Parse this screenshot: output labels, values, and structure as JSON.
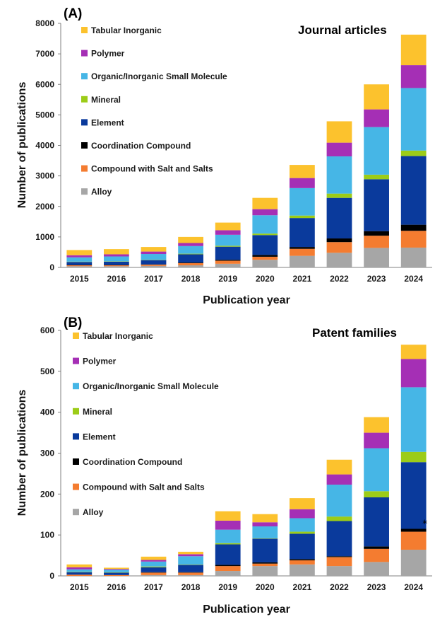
{
  "chart_data": [
    {
      "type": "bar",
      "stacked": true,
      "panel_label": "(A)",
      "title": "Journal articles",
      "xlabel": "Publication year",
      "ylabel": "Number of publications",
      "ylim": [
        0,
        8000
      ],
      "yticks": [
        0,
        1000,
        2000,
        3000,
        4000,
        5000,
        6000,
        7000,
        8000
      ],
      "categories": [
        "2015",
        "2016",
        "2017",
        "2018",
        "2019",
        "2020",
        "2021",
        "2022",
        "2023",
        "2024"
      ],
      "legend_position": "top-left",
      "legend_order": [
        "Tabular Inorganic",
        "Polymer",
        "Organic/Inorganic Small Molecule",
        "Mineral",
        "Element",
        "Coordination Compound",
        "Compound with Salt and Salts",
        "Alloy"
      ],
      "series": [
        {
          "name": "Alloy",
          "color": "#a6a6a6",
          "values": [
            40,
            40,
            50,
            70,
            120,
            250,
            380,
            480,
            640,
            650
          ]
        },
        {
          "name": "Compound with Salt and Salts",
          "color": "#f47c30",
          "values": [
            30,
            30,
            40,
            70,
            100,
            100,
            230,
            350,
            400,
            550
          ]
        },
        {
          "name": "Coordination Compound",
          "color": "#000000",
          "values": [
            10,
            10,
            10,
            20,
            30,
            60,
            60,
            120,
            150,
            200
          ]
        },
        {
          "name": "Element",
          "color": "#0a3a9c",
          "values": [
            100,
            110,
            140,
            270,
            430,
            650,
            950,
            1330,
            1700,
            2250
          ]
        },
        {
          "name": "Mineral",
          "color": "#9ccc18",
          "values": [
            10,
            10,
            10,
            20,
            30,
            50,
            80,
            140,
            150,
            180
          ]
        },
        {
          "name": "Organic/Inorganic Small Molecule",
          "color": "#46b6e6",
          "values": [
            140,
            160,
            190,
            250,
            360,
            600,
            900,
            1220,
            1560,
            2050
          ]
        },
        {
          "name": "Polymer",
          "color": "#a52fb5",
          "values": [
            70,
            70,
            80,
            100,
            150,
            200,
            330,
            450,
            580,
            750
          ]
        },
        {
          "name": "Tabular Inorganic",
          "color": "#fcc22d",
          "values": [
            170,
            170,
            150,
            200,
            250,
            370,
            430,
            700,
            820,
            1000
          ]
        }
      ]
    },
    {
      "type": "bar",
      "stacked": true,
      "panel_label": "(B)",
      "title": "Patent families",
      "xlabel": "Publication year",
      "ylabel": "Number of publications",
      "ylim": [
        0,
        600
      ],
      "yticks": [
        0,
        100,
        200,
        300,
        400,
        500,
        600
      ],
      "categories": [
        "2015",
        "2016",
        "2017",
        "2018",
        "2019",
        "2020",
        "2021",
        "2022",
        "2023",
        "2024"
      ],
      "legend_position": "top-left",
      "legend_order": [
        "Tabular Inorganic",
        "Polymer",
        "Organic/Inorganic Small Molecule",
        "Mineral",
        "Element",
        "Coordination Compound",
        "Compound with Salt and Salts",
        "Alloy"
      ],
      "annotation": {
        "text": "*",
        "category": "2024",
        "y": 130
      },
      "series": [
        {
          "name": "Alloy",
          "color": "#a6a6a6",
          "values": [
            0,
            0,
            2,
            2,
            12,
            24,
            28,
            24,
            34,
            64
          ]
        },
        {
          "name": "Compound with Salt and Salts",
          "color": "#f47c30",
          "values": [
            3,
            2,
            6,
            6,
            12,
            6,
            10,
            22,
            32,
            44
          ]
        },
        {
          "name": "Coordination Compound",
          "color": "#000000",
          "values": [
            0,
            0,
            1,
            1,
            3,
            3,
            3,
            2,
            6,
            7
          ]
        },
        {
          "name": "Element",
          "color": "#0a3a9c",
          "values": [
            6,
            6,
            12,
            18,
            50,
            58,
            62,
            86,
            120,
            163
          ]
        },
        {
          "name": "Mineral",
          "color": "#9ccc18",
          "values": [
            1,
            1,
            2,
            1,
            3,
            1,
            5,
            11,
            15,
            25
          ]
        },
        {
          "name": "Organic/Inorganic Small Molecule",
          "color": "#46b6e6",
          "values": [
            6,
            6,
            12,
            20,
            33,
            29,
            33,
            78,
            105,
            158
          ]
        },
        {
          "name": "Polymer",
          "color": "#a52fb5",
          "values": [
            5,
            2,
            4,
            5,
            22,
            10,
            22,
            25,
            38,
            69
          ]
        },
        {
          "name": "Tabular Inorganic",
          "color": "#fcc22d",
          "values": [
            7,
            3,
            8,
            6,
            23,
            20,
            27,
            36,
            38,
            35
          ]
        }
      ]
    }
  ]
}
